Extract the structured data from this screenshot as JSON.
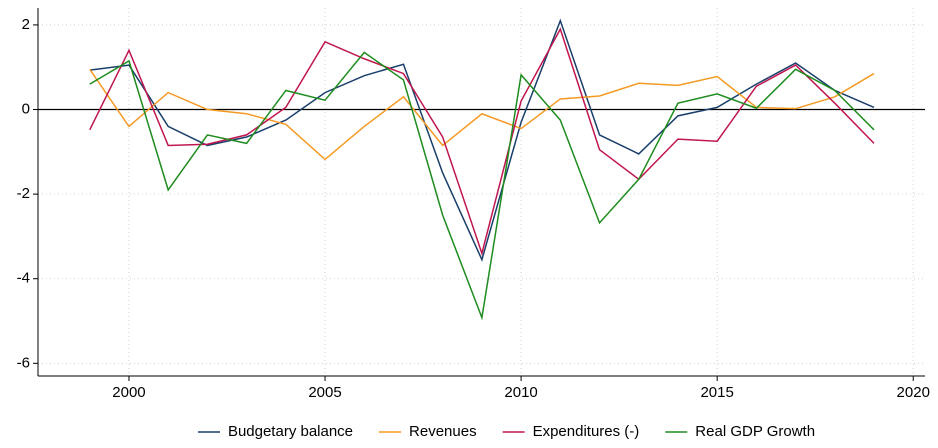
{
  "chart_data": {
    "type": "line",
    "x": [
      1999,
      2000,
      2001,
      2002,
      2003,
      2004,
      2005,
      2006,
      2007,
      2008,
      2009,
      2010,
      2011,
      2012,
      2013,
      2014,
      2015,
      2016,
      2017,
      2018,
      2019
    ],
    "series": [
      {
        "name": "Budgetary balance",
        "color": "#1a3f6b",
        "values": [
          0.93,
          1.05,
          -0.4,
          -0.85,
          -0.65,
          -0.25,
          0.4,
          0.8,
          1.07,
          -1.5,
          -3.55,
          -0.3,
          2.1,
          -0.6,
          -1.05,
          -0.15,
          0.05,
          0.6,
          1.1,
          0.45,
          0.05
        ]
      },
      {
        "name": "Revenues",
        "color": "#f59a23",
        "values": [
          0.95,
          -0.4,
          0.4,
          0.0,
          -0.1,
          -0.35,
          -1.18,
          -0.4,
          0.3,
          -0.85,
          -0.1,
          -0.45,
          0.25,
          0.32,
          0.62,
          0.57,
          0.78,
          0.05,
          0.02,
          0.3,
          0.85
        ]
      },
      {
        "name": "Expenditures (-)",
        "color": "#c0164f",
        "values": [
          -0.48,
          1.4,
          -0.85,
          -0.82,
          -0.6,
          0.05,
          1.6,
          1.2,
          0.85,
          -0.65,
          -3.4,
          0.2,
          1.9,
          -0.95,
          -1.65,
          -0.7,
          -0.75,
          0.55,
          1.05,
          0.15,
          -0.8
        ]
      },
      {
        "name": "Real GDP Growth",
        "color": "#1e8c1e",
        "values": [
          0.6,
          1.15,
          -1.9,
          -0.6,
          -0.8,
          0.45,
          0.22,
          1.35,
          0.7,
          -2.5,
          -4.92,
          0.82,
          -0.25,
          -2.68,
          -1.65,
          0.15,
          0.37,
          0.03,
          0.95,
          0.45,
          -0.48
        ]
      }
    ],
    "xlim": [
      1997.68,
      2020.3
    ],
    "xticks": [
      2000,
      2005,
      2010,
      2015,
      2020
    ],
    "ylim": [
      -6.3,
      2.4
    ],
    "yticks": [
      -6,
      -4,
      -2,
      0,
      2
    ],
    "reference_line": 0,
    "grid": true,
    "legend": "bottom"
  }
}
